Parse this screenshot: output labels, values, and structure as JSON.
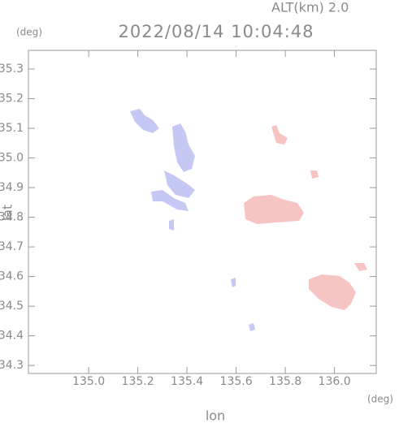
{
  "chart_data": {
    "type": "scatter",
    "title": "2022/08/14 10:04:48",
    "subtitle": "ALT(km)  2.0",
    "xlabel": "lon",
    "ylabel": "lat",
    "xunit": "(deg)",
    "yunit": "(deg)",
    "xlim": [
      134.755,
      136.17
    ],
    "ylim": [
      34.273,
      35.363
    ],
    "xticks": [
      {
        "value": 135.0,
        "label": "135.0"
      },
      135.2,
      135.4,
      135.6,
      135.8,
      {
        "value": 136.0,
        "label": "136.0"
      }
    ],
    "yticks": [
      34.3,
      34.4,
      34.5,
      34.6,
      34.7,
      34.8,
      34.9,
      {
        "value": 35.0,
        "label": "35.0"
      },
      35.1,
      35.2,
      35.3
    ]
  }
}
